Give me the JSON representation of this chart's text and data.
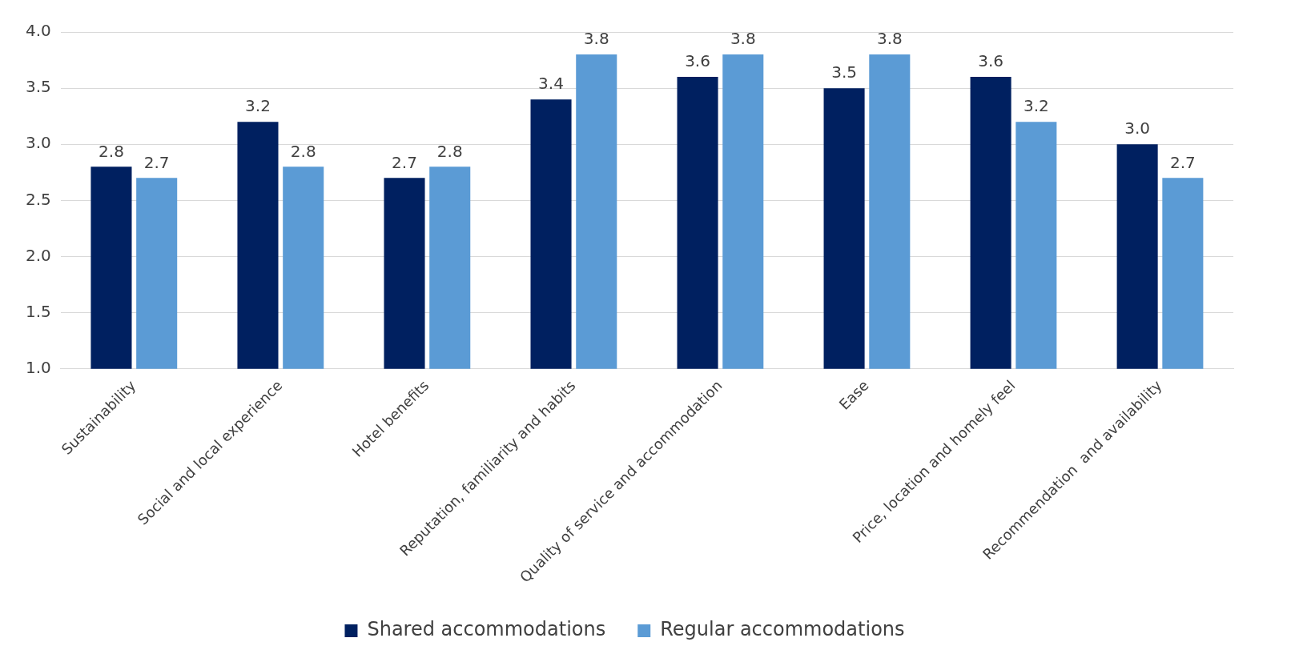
{
  "chart_data": {
    "type": "bar",
    "categories": [
      "Sustainability",
      "Social and local experience",
      "Hotel benefits",
      "Reputation, familiarity and habits",
      "Quality of service and accommodation",
      "Ease",
      "Price, location and homely feel",
      "Recommendation  and availability"
    ],
    "series": [
      {
        "name": "Shared accommodations",
        "color": "#002060",
        "values": [
          2.8,
          3.2,
          2.7,
          3.4,
          3.6,
          3.5,
          3.6,
          3.0
        ],
        "value_labels": [
          "2.8",
          "3.2",
          "2.7",
          "3.4",
          "3.6",
          "3.5",
          "3.6",
          "3.0"
        ]
      },
      {
        "name": "Regular accommodations",
        "color": "#5b9bd5",
        "values": [
          2.7,
          2.8,
          2.8,
          3.8,
          3.8,
          3.8,
          3.2,
          2.7
        ],
        "value_labels": [
          "2.7",
          "2.8",
          "2.8",
          "3.8",
          "3.8",
          "3.8",
          "3.2",
          "2.7"
        ]
      }
    ],
    "ylim": [
      1,
      4
    ],
    "yticks": [
      {
        "value": 1,
        "label": "1.0"
      },
      {
        "value": 1.5,
        "label": "1.5"
      },
      {
        "value": 2,
        "label": "2.0"
      },
      {
        "value": 2.5,
        "label": "2.5"
      },
      {
        "value": 3,
        "label": "3.0"
      },
      {
        "value": 3.5,
        "label": "3.5"
      },
      {
        "value": 4,
        "label": "4.0"
      }
    ],
    "grid": "y",
    "legend": "bottom"
  }
}
